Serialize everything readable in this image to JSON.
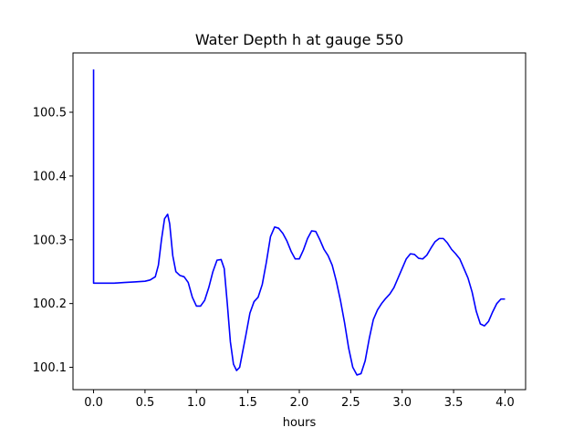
{
  "chart_data": {
    "type": "line",
    "title": "Water Depth h at gauge 550",
    "xlabel": "hours",
    "ylabel": "",
    "xlim": [
      -0.2,
      4.2
    ],
    "ylim": [
      100.065,
      100.593
    ],
    "xticks": [
      0.0,
      0.5,
      1.0,
      1.5,
      2.0,
      2.5,
      3.0,
      3.5,
      4.0
    ],
    "xtick_labels": [
      "0.0",
      "0.5",
      "1.0",
      "1.5",
      "2.0",
      "2.5",
      "3.0",
      "3.5",
      "4.0"
    ],
    "yticks": [
      100.1,
      100.2,
      100.3,
      100.4,
      100.5
    ],
    "ytick_labels": [
      "100.1",
      "100.2",
      "100.3",
      "100.4",
      "100.5"
    ],
    "grid": false,
    "series": [
      {
        "color": "#0000ff",
        "x": [
          0.0,
          0.0,
          0.001,
          0.1,
          0.2,
          0.3,
          0.4,
          0.5,
          0.55,
          0.6,
          0.63,
          0.66,
          0.69,
          0.72,
          0.74,
          0.77,
          0.8,
          0.84,
          0.88,
          0.92,
          0.96,
          1.0,
          1.04,
          1.08,
          1.12,
          1.16,
          1.2,
          1.24,
          1.27,
          1.3,
          1.33,
          1.36,
          1.39,
          1.42,
          1.45,
          1.48,
          1.52,
          1.56,
          1.6,
          1.64,
          1.68,
          1.72,
          1.76,
          1.8,
          1.84,
          1.88,
          1.92,
          1.96,
          2.0,
          2.04,
          2.08,
          2.12,
          2.16,
          2.2,
          2.24,
          2.28,
          2.32,
          2.36,
          2.4,
          2.44,
          2.48,
          2.52,
          2.56,
          2.6,
          2.64,
          2.68,
          2.72,
          2.76,
          2.8,
          2.84,
          2.88,
          2.92,
          2.96,
          3.0,
          3.04,
          3.08,
          3.12,
          3.16,
          3.2,
          3.24,
          3.28,
          3.32,
          3.36,
          3.4,
          3.44,
          3.48,
          3.52,
          3.56,
          3.6,
          3.64,
          3.68,
          3.72,
          3.76,
          3.8,
          3.84,
          3.88,
          3.92,
          3.96,
          4.0
        ],
        "y": [
          100.567,
          100.232,
          100.232,
          100.232,
          100.232,
          100.233,
          100.234,
          100.235,
          100.237,
          100.242,
          100.26,
          100.3,
          100.333,
          100.34,
          100.325,
          100.275,
          100.25,
          100.244,
          100.242,
          100.233,
          100.21,
          100.196,
          100.196,
          100.205,
          100.225,
          100.25,
          100.268,
          100.269,
          100.255,
          100.2,
          100.14,
          100.105,
          100.095,
          100.1,
          100.125,
          100.15,
          100.185,
          100.203,
          100.21,
          100.23,
          100.265,
          100.305,
          100.32,
          100.318,
          100.31,
          100.298,
          100.282,
          100.27,
          100.27,
          100.284,
          100.302,
          100.314,
          100.313,
          100.3,
          100.285,
          100.275,
          100.26,
          100.235,
          100.205,
          100.17,
          100.13,
          100.1,
          100.088,
          100.09,
          100.11,
          100.145,
          100.175,
          100.19,
          100.2,
          100.208,
          100.215,
          100.225,
          100.24,
          100.255,
          100.27,
          100.278,
          100.277,
          100.271,
          100.27,
          100.276,
          100.287,
          100.297,
          100.302,
          100.302,
          100.295,
          100.285,
          100.278,
          100.27,
          100.255,
          100.24,
          100.218,
          100.188,
          100.168,
          100.165,
          100.172,
          100.187,
          100.2,
          100.207,
          100.207
        ]
      }
    ]
  }
}
